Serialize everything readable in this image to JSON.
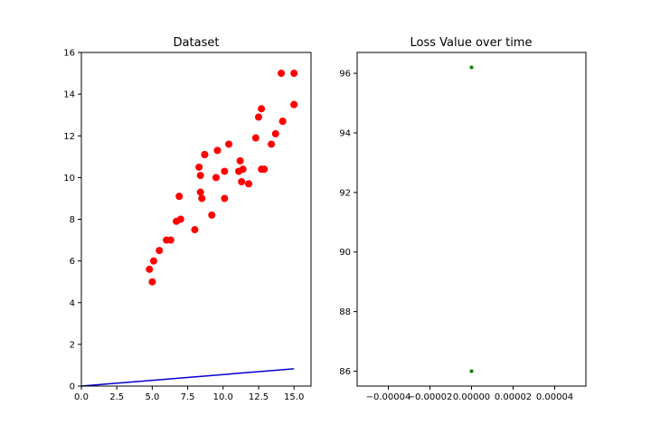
{
  "chart_data": [
    {
      "type": "scatter",
      "title": "Dataset",
      "xlabel": "",
      "ylabel": "",
      "xlim": [
        0,
        16.2
      ],
      "ylim": [
        0,
        16
      ],
      "xticks": [
        0.0,
        2.5,
        5.0,
        7.5,
        10.0,
        12.5,
        15.0
      ],
      "xtick_labels": [
        "0.0",
        "2.5",
        "5.0",
        "7.5",
        "10.0",
        "12.5",
        "15.0"
      ],
      "yticks": [
        0,
        2,
        4,
        6,
        8,
        10,
        12,
        14,
        16
      ],
      "ytick_labels": [
        "0",
        "2",
        "4",
        "6",
        "8",
        "10",
        "12",
        "14",
        "16"
      ],
      "grid": false,
      "series": [
        {
          "kind": "scatter",
          "color": "#ff0000",
          "points": [
            [
              4.8,
              5.6
            ],
            [
              5.0,
              5.0
            ],
            [
              5.1,
              6.0
            ],
            [
              5.5,
              6.5
            ],
            [
              6.0,
              7.0
            ],
            [
              6.3,
              7.0
            ],
            [
              6.7,
              7.9
            ],
            [
              6.9,
              9.1
            ],
            [
              7.0,
              8.0
            ],
            [
              8.0,
              7.5
            ],
            [
              8.3,
              10.5
            ],
            [
              8.4,
              10.1
            ],
            [
              8.4,
              9.3
            ],
            [
              8.5,
              9.0
            ],
            [
              8.7,
              11.1
            ],
            [
              8.7,
              11.1
            ],
            [
              9.2,
              8.2
            ],
            [
              9.5,
              10.0
            ],
            [
              9.6,
              11.3
            ],
            [
              10.1,
              9.0
            ],
            [
              10.1,
              10.3
            ],
            [
              10.4,
              11.6
            ],
            [
              11.1,
              10.3
            ],
            [
              11.2,
              10.8
            ],
            [
              11.3,
              9.8
            ],
            [
              11.4,
              10.4
            ],
            [
              11.8,
              9.7
            ],
            [
              12.3,
              11.9
            ],
            [
              12.5,
              12.9
            ],
            [
              12.7,
              13.3
            ],
            [
              12.7,
              10.4
            ],
            [
              12.9,
              10.4
            ],
            [
              13.4,
              11.6
            ],
            [
              13.7,
              12.1
            ],
            [
              14.1,
              15.0
            ],
            [
              14.2,
              12.7
            ],
            [
              14.2,
              12.7
            ],
            [
              15.0,
              15.0
            ],
            [
              15.0,
              13.5
            ],
            [
              15.0,
              13.5
            ]
          ]
        },
        {
          "kind": "line",
          "color": "#0000cc",
          "x": [
            0,
            15.0
          ],
          "y": [
            0,
            0.83
          ]
        }
      ]
    },
    {
      "type": "scatter",
      "title": "Loss Value over time",
      "xlabel": "",
      "ylabel": "",
      "xlim": [
        -5.5e-05,
        5.5e-05
      ],
      "ylim": [
        85.5,
        96.7
      ],
      "xticks": [
        -4e-05,
        -2e-05,
        0.0,
        2e-05,
        4e-05
      ],
      "xtick_labels": [
        "−0.00004",
        "−0.00002",
        "0.00000",
        "0.00002",
        "0.00004"
      ],
      "yticks": [
        86,
        88,
        90,
        92,
        94,
        96
      ],
      "ytick_labels": [
        "86",
        "88",
        "90",
        "92",
        "94",
        "96"
      ],
      "grid": false,
      "series": [
        {
          "kind": "scatter",
          "color": "#008000",
          "points": [
            [
              0,
              96.2
            ],
            [
              0,
              86.0
            ]
          ]
        }
      ]
    }
  ]
}
